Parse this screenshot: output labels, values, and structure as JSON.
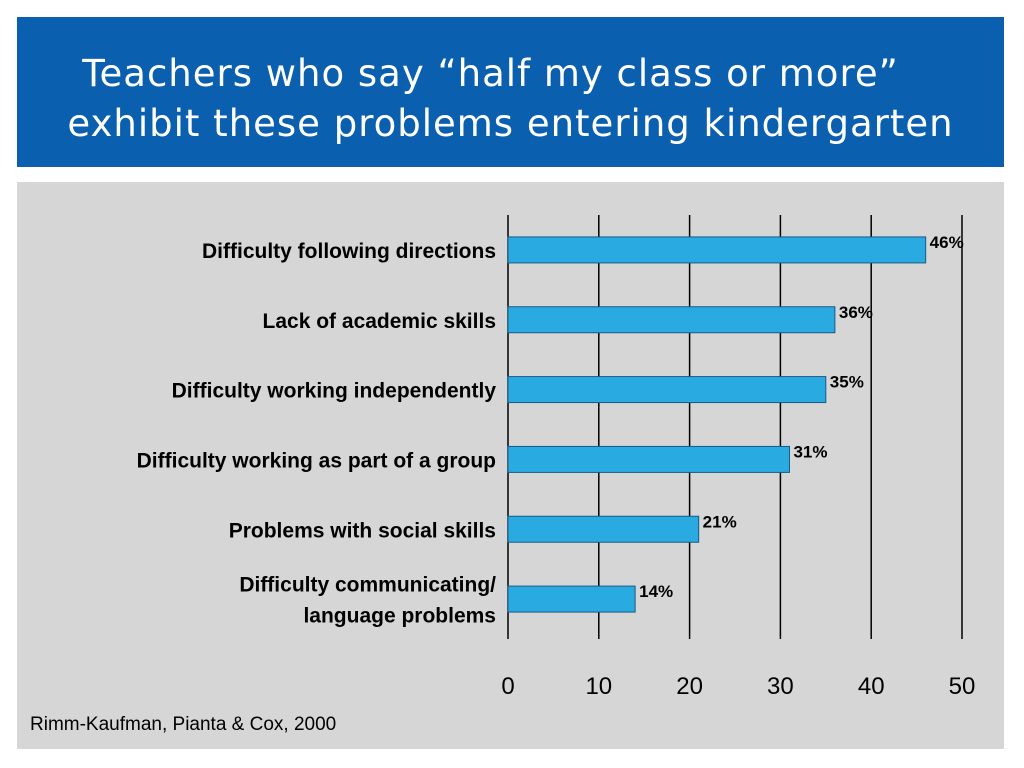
{
  "header": {
    "title_line1": "Teachers who say “half my class or more”",
    "title_line2": "exhibit these problems entering kindergarten"
  },
  "source": "Rimm-Kaufman, Pianta & Cox, 2000",
  "colors": {
    "title_band": "#0a5fae",
    "panel": "#d6d6d6",
    "bar": "#29abe2"
  },
  "chart_data": {
    "type": "bar",
    "orientation": "horizontal",
    "categories": [
      [
        "Difficulty following directions"
      ],
      [
        "Lack of academic skills"
      ],
      [
        "Difficulty working independently"
      ],
      [
        "Difficulty working as part of a group"
      ],
      [
        "Problems with social skills"
      ],
      [
        "Difficulty communicating/",
        "language problems"
      ]
    ],
    "values": [
      46,
      36,
      35,
      31,
      21,
      14
    ],
    "value_labels": [
      "46%",
      "36%",
      "35%",
      "31%",
      "21%",
      "14%"
    ],
    "x_ticks": [
      "0",
      "10",
      "20",
      "30",
      "40",
      "50"
    ],
    "xlim": [
      0,
      50
    ],
    "grid": "vertical gridlines"
  }
}
